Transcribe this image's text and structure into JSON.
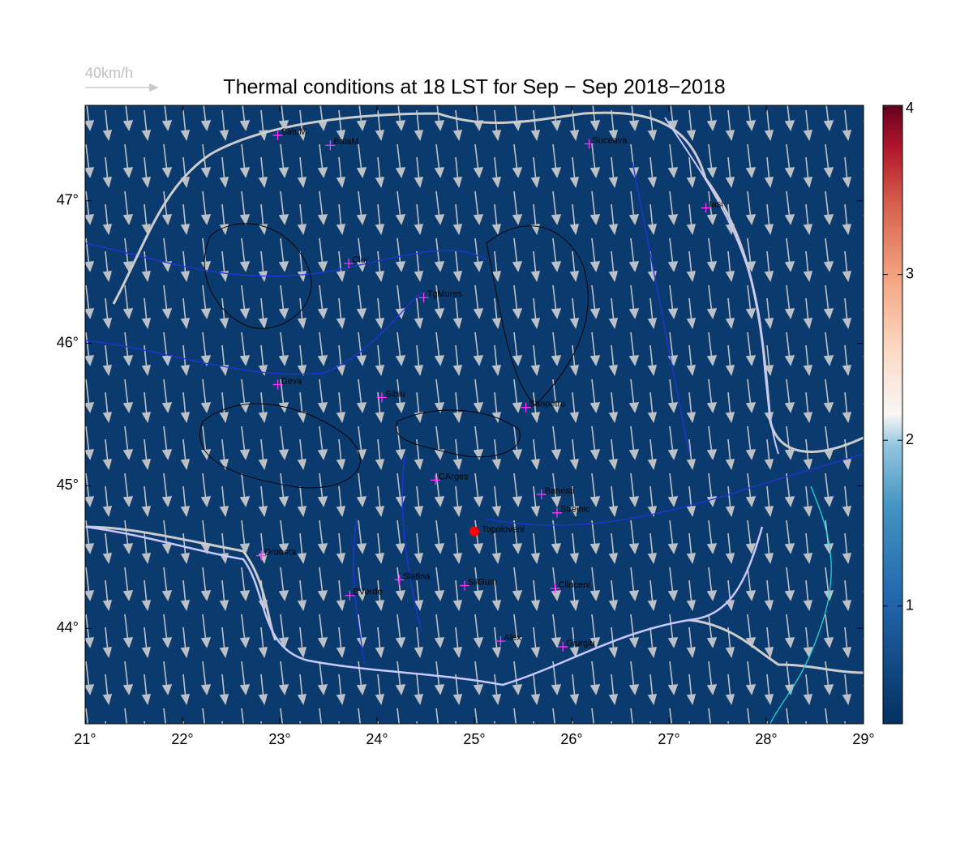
{
  "title": "Thermal conditions at 18 LST for Sep − Sep  2018−2018",
  "wind_legend": "40km/h",
  "map": {
    "xlim": [
      21,
      29
    ],
    "ylim": [
      43.33,
      47.67
    ],
    "xticks": [
      {
        "value": 21,
        "label": "21°"
      },
      {
        "value": 22,
        "label": "22°"
      },
      {
        "value": 23,
        "label": "23°"
      },
      {
        "value": 24,
        "label": "24°"
      },
      {
        "value": 25,
        "label": "25°"
      },
      {
        "value": 26,
        "label": "26°"
      },
      {
        "value": 27,
        "label": "27°"
      },
      {
        "value": 28,
        "label": "28°"
      },
      {
        "value": 29,
        "label": "29°"
      }
    ],
    "yticks": [
      {
        "value": 44,
        "label": "44°"
      },
      {
        "value": 45,
        "label": "45°"
      },
      {
        "value": 46,
        "label": "46°"
      },
      {
        "value": 47,
        "label": "47°"
      }
    ],
    "background": "#0b3a6e"
  },
  "colorbar": {
    "clim": [
      0.29,
      4.02
    ],
    "ticks": [
      1,
      2,
      3,
      4
    ]
  },
  "cities": [
    {
      "name": "SatuM",
      "lon": 22.98,
      "lat": 47.46
    },
    {
      "name": "BaiaM",
      "lon": 23.52,
      "lat": 47.39
    },
    {
      "name": "Suceava",
      "lon": 26.18,
      "lat": 47.4
    },
    {
      "name": "Iasi",
      "lon": 27.38,
      "lat": 46.95
    },
    {
      "name": "Cluj",
      "lon": 23.71,
      "lat": 46.56
    },
    {
      "name": "TgMures",
      "lon": 24.48,
      "lat": 46.32
    },
    {
      "name": "Deva",
      "lon": 22.98,
      "lat": 45.71
    },
    {
      "name": "Sibiu",
      "lon": 24.05,
      "lat": 45.62
    },
    {
      "name": "Sanpetru",
      "lon": 25.53,
      "lat": 45.55
    },
    {
      "name": "CArges",
      "lon": 24.6,
      "lat": 45.04
    },
    {
      "name": "Banesti",
      "lon": 25.69,
      "lat": 44.94
    },
    {
      "name": "Strejnic",
      "lon": 25.85,
      "lat": 44.81
    },
    {
      "name": "Drobeta",
      "lon": 22.81,
      "lat": 44.51
    },
    {
      "name": "Slatina",
      "lon": 24.23,
      "lat": 44.34
    },
    {
      "name": "SilGum",
      "lon": 24.9,
      "lat": 44.3
    },
    {
      "name": "Clinceni",
      "lon": 25.83,
      "lat": 44.28
    },
    {
      "name": "BVerde",
      "lon": 23.72,
      "lat": 44.23
    },
    {
      "name": "Alex",
      "lon": 25.27,
      "lat": 43.91
    },
    {
      "name": "Giurgiu",
      "lon": 25.91,
      "lat": 43.87
    }
  ],
  "marker": {
    "name": "Topoloveni",
    "lon": 25.0,
    "lat": 44.68,
    "color": "#ff0000"
  }
}
